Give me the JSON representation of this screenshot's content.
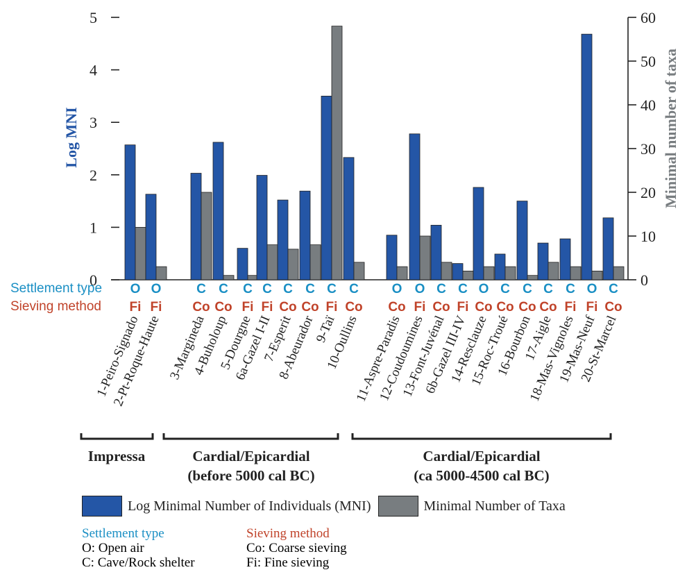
{
  "chart_data": {
    "type": "bar",
    "ylabel": "Log MNI",
    "y2label": "Minimal number of taxa",
    "ylim": [
      0,
      5
    ],
    "y2lim": [
      0,
      60
    ],
    "yticks": [
      0,
      1,
      2,
      3,
      4,
      5
    ],
    "y2ticks": [
      0,
      10,
      20,
      30,
      40,
      50,
      60
    ],
    "categories": [
      "1-Peiro-Signado",
      "2-Pt-Roque-Haute",
      "3-Margineda",
      "4-Buholoup",
      "5-Dourgne",
      "6a-Gazel I-II",
      "7-Esperit",
      "8-Abeurador",
      "9-Taï",
      "10-Oullins",
      "11-Aspre-Paradis",
      "12-Coudoumines",
      "13-Font-Juvénal",
      "6b-Gazel III-IV",
      "14-Resclauze",
      "15-Roc-Troué",
      "16-Bourbon",
      "17-Aigle",
      "18-Mas-Vignoles",
      "19-Mas-Neuf",
      "20-St-Marcel"
    ],
    "series": [
      {
        "name": "Log Minimal Number of Individuals (MNI)",
        "axis": "left",
        "color": "#2456a6",
        "values": [
          2.57,
          1.63,
          2.03,
          2.62,
          0.6,
          1.99,
          1.52,
          1.69,
          3.5,
          2.33,
          0.85,
          2.78,
          1.04,
          0.31,
          1.76,
          0.49,
          1.5,
          0.7,
          0.78,
          4.68,
          1.18
        ]
      },
      {
        "name": "Minimal Number of Taxa",
        "axis": "right",
        "color": "#787d80",
        "values": [
          12,
          3,
          20,
          1,
          1,
          8,
          7,
          8,
          58,
          4,
          3,
          10,
          4,
          2,
          3,
          3,
          1,
          4,
          3,
          2,
          3
        ]
      }
    ],
    "settlement_type": [
      "O",
      "O",
      "C",
      "C",
      "C",
      "C",
      "C",
      "C",
      "C",
      "C",
      "O",
      "O",
      "C",
      "C",
      "O",
      "C",
      "C",
      "C",
      "C",
      "O",
      "C"
    ],
    "sieving_method": [
      "Fi",
      "Fi",
      "Co",
      "Co",
      "Fi",
      "Fi",
      "Co",
      "Co",
      "Fi",
      "Co",
      "Co",
      "Fi",
      "Co",
      "Fi",
      "Co",
      "Co",
      "Co",
      "Co",
      "Fi",
      "Fi",
      "Co"
    ],
    "row_labels": {
      "settlement": "Settlement type",
      "sieving": "Sieving method"
    },
    "groups": [
      {
        "label_line1": "Impressa",
        "label_line2": ""
      },
      {
        "label_line1": "Cardial/Epicardial",
        "label_line2": "(before 5000 cal BC)"
      },
      {
        "label_line1": "Cardial/Epicardial",
        "label_line2": "(ca 5000-4500 cal BC)"
      }
    ],
    "colors": {
      "mni": "#2456a6",
      "taxa": "#787d80",
      "settlement": "#1a8fc4",
      "sieving": "#c0432a",
      "text": "#222222"
    }
  },
  "legend": {
    "mni_label": "Log Minimal Number of Individuals (MNI)",
    "taxa_label": "Minimal Number of Taxa"
  },
  "notes": {
    "settlement_title": "Settlement type",
    "settlement_items": [
      "O: Open air",
      "C: Cave/Rock shelter"
    ],
    "sieving_title": "Sieving method",
    "sieving_items": [
      "Co: Coarse sieving",
      "Fi: Fine sieving"
    ]
  }
}
